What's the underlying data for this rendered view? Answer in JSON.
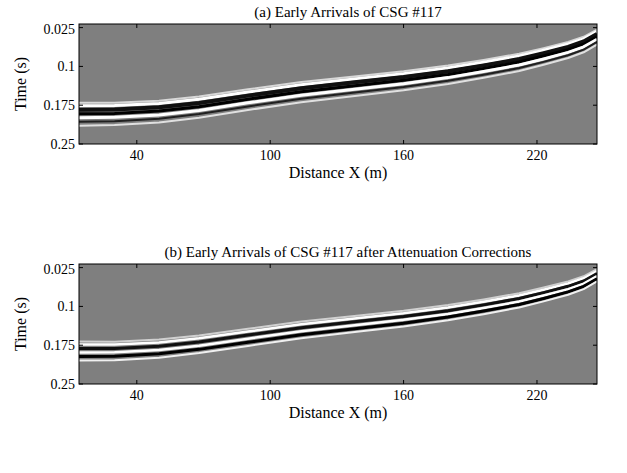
{
  "chart_data": [
    {
      "type": "line",
      "title": "(a) Early Arrivals of CSG #117",
      "x_label": "Distance X (m)",
      "y_label": "Time (s)",
      "xlim": [
        14,
        247
      ],
      "ylim": [
        0.018,
        0.25
      ],
      "xticks": [
        40,
        100,
        160,
        220
      ],
      "yticks": [
        0.025,
        0.1,
        0.175,
        0.25
      ],
      "x": [
        14,
        30,
        50,
        68,
        90,
        114,
        140,
        160,
        180,
        196,
        212,
        223,
        234,
        241,
        247
      ],
      "values": [
        0.172,
        0.172,
        0.168,
        0.16,
        0.146,
        0.132,
        0.12,
        0.111,
        0.1,
        0.089,
        0.077,
        0.066,
        0.054,
        0.044,
        0.03
      ]
    },
    {
      "type": "line",
      "title": "(b) Early Arrivals of CSG #117 after Attenuation Corrections",
      "x_label": "Distance X (m)",
      "y_label": "Time (s)",
      "xlim": [
        14,
        247
      ],
      "ylim": [
        0.018,
        0.25
      ],
      "xticks": [
        40,
        100,
        160,
        220
      ],
      "yticks": [
        0.025,
        0.1,
        0.175,
        0.25
      ],
      "x": [
        14,
        30,
        50,
        68,
        90,
        114,
        140,
        160,
        180,
        196,
        212,
        223,
        234,
        241,
        247
      ],
      "values": [
        0.17,
        0.17,
        0.166,
        0.158,
        0.145,
        0.131,
        0.119,
        0.11,
        0.099,
        0.088,
        0.076,
        0.065,
        0.053,
        0.043,
        0.029
      ]
    }
  ]
}
